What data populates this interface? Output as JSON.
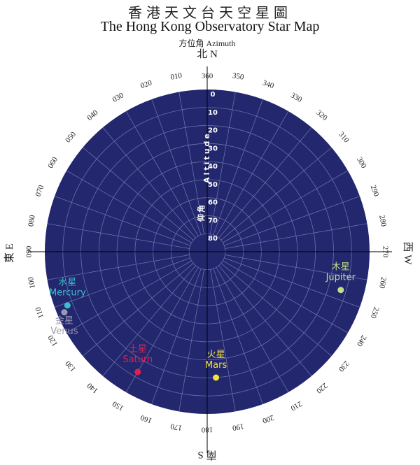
{
  "header": {
    "title_zh": "香港天文台天空星圖",
    "title_en": "The Hong Kong Observatory Star Map"
  },
  "axis": {
    "azimuth_label": "方位角 Azimuth",
    "altitude_label_en": "Altitude",
    "altitude_label_zh": "仰角",
    "azimuth_ticks": [
      "360",
      "010",
      "020",
      "030",
      "040",
      "050",
      "060",
      "070",
      "080",
      "090",
      "100",
      "110",
      "120",
      "130",
      "140",
      "150",
      "160",
      "170",
      "180",
      "190",
      "200",
      "210",
      "220",
      "230",
      "240",
      "250",
      "260",
      "270",
      "280",
      "290",
      "300",
      "310",
      "320",
      "330",
      "340",
      "350"
    ],
    "altitude_ticks": [
      "0",
      "10",
      "20",
      "30",
      "40",
      "50",
      "60",
      "70",
      "80"
    ]
  },
  "directions": {
    "north": "北 N",
    "east": "東 E",
    "south": "南 S",
    "west": "西 W"
  },
  "colors": {
    "sky": "#22276e",
    "grid": "#6b70a8"
  },
  "planets": [
    {
      "id": "jupiter",
      "name_zh": "木星",
      "name_en": "Jupiter",
      "azimuth": 254,
      "altitude": 13,
      "color": "#c2de8a",
      "label_side": "above"
    },
    {
      "id": "mars",
      "name_zh": "火星",
      "name_en": "Mars",
      "azimuth": 184,
      "altitude": 20,
      "color": "#f2e23a",
      "label_side": "above"
    },
    {
      "id": "saturn",
      "name_zh": "土星",
      "name_en": "Saturn",
      "azimuth": 150,
      "altitude": 13,
      "color": "#e2204e",
      "label_side": "above"
    },
    {
      "id": "mercury",
      "name_zh": "水星",
      "name_en": "Mercury",
      "azimuth": 111,
      "altitude": 7,
      "color": "#3dbecc",
      "label_side": "above"
    },
    {
      "id": "venus",
      "name_zh": "金星",
      "name_en": "Venus",
      "azimuth": 113,
      "altitude": 4,
      "color": "#9b98b6",
      "label_side": "below"
    }
  ]
}
